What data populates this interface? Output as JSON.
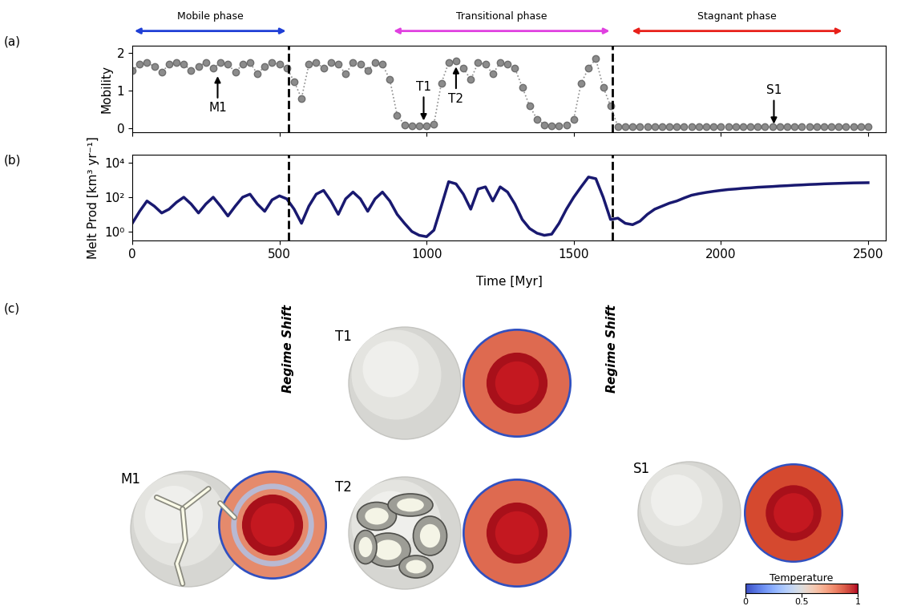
{
  "chart_data": [
    {
      "type": "scatter",
      "title": "(a)",
      "ylabel": "Mobility",
      "x": [
        0,
        25,
        50,
        75,
        100,
        125,
        150,
        175,
        200,
        225,
        250,
        275,
        300,
        325,
        350,
        375,
        400,
        425,
        450,
        475,
        500,
        525,
        550,
        575,
        600,
        625,
        650,
        675,
        700,
        725,
        750,
        775,
        800,
        825,
        850,
        875,
        900,
        925,
        950,
        975,
        1000,
        1025,
        1050,
        1075,
        1100,
        1125,
        1150,
        1175,
        1200,
        1225,
        1250,
        1275,
        1300,
        1325,
        1350,
        1375,
        1400,
        1425,
        1450,
        1475,
        1500,
        1525,
        1550,
        1575,
        1600,
        1625,
        1650,
        1675,
        1700,
        1725,
        1750,
        1775,
        1800,
        1825,
        1850,
        1875,
        1900,
        1925,
        1950,
        1975,
        2000,
        2025,
        2050,
        2075,
        2100,
        2125,
        2150,
        2175,
        2200,
        2225,
        2250,
        2275,
        2300,
        2325,
        2350,
        2375,
        2400,
        2425,
        2450,
        2475,
        2500
      ],
      "values": [
        1.55,
        1.7,
        1.75,
        1.65,
        1.5,
        1.7,
        1.75,
        1.7,
        1.55,
        1.65,
        1.75,
        1.6,
        1.75,
        1.7,
        1.5,
        1.7,
        1.75,
        1.45,
        1.65,
        1.75,
        1.7,
        1.6,
        1.25,
        0.8,
        1.7,
        1.75,
        1.6,
        1.75,
        1.7,
        1.45,
        1.75,
        1.7,
        1.55,
        1.75,
        1.7,
        1.3,
        0.35,
        0.1,
        0.08,
        0.07,
        0.08,
        0.12,
        1.2,
        1.75,
        1.8,
        1.6,
        1.3,
        1.75,
        1.7,
        1.45,
        1.75,
        1.7,
        1.6,
        1.1,
        0.6,
        0.25,
        0.1,
        0.08,
        0.08,
        0.1,
        0.25,
        1.2,
        1.6,
        1.85,
        1.1,
        0.6,
        0.05,
        0.04,
        0.04,
        0.04,
        0.04,
        0.04,
        0.04,
        0.04,
        0.04,
        0.04,
        0.04,
        0.04,
        0.04,
        0.04,
        0.04,
        0.04,
        0.04,
        0.04,
        0.04,
        0.04,
        0.04,
        0.04,
        0.04,
        0.04,
        0.04,
        0.04,
        0.04,
        0.04,
        0.04,
        0.04,
        0.04,
        0.04,
        0.04,
        0.04,
        0.04
      ],
      "color": "#8c8c8c",
      "marker": "circle",
      "line_style": "dotted",
      "xlim": [
        0,
        2560
      ],
      "xticks": [
        0,
        500,
        1000,
        1500,
        2000,
        2500
      ],
      "ylim": [
        -0.1,
        2.2
      ],
      "yticks": [
        0,
        1,
        2
      ],
      "tick_labels": "y",
      "grid": false,
      "annotations": [
        {
          "text": "M1",
          "x": 290,
          "y": 1.45
        },
        {
          "text": "T1",
          "x": 990,
          "y": 0.15
        },
        {
          "text": "T2",
          "x": 1100,
          "y": 1.7
        },
        {
          "text": "S1",
          "x": 2180,
          "y": 0.06
        }
      ],
      "phases": [
        {
          "label": "Mobile phase",
          "start": 0,
          "end": 530,
          "color": "#1f3fd6"
        },
        {
          "label": "Transitional phase",
          "start": 880,
          "end": 1630,
          "color": "#e040e0"
        },
        {
          "label": "Stagnant phase",
          "start": 1690,
          "end": 2420,
          "color": "#e8201a"
        }
      ],
      "vlines": {
        "x": [
          530,
          1630
        ]
      }
    },
    {
      "type": "line",
      "title": "(b)",
      "ylabel": "Melt Prod [km³ yr⁻¹]",
      "xlabel": "Time [Myr]",
      "x": [
        0,
        25,
        50,
        75,
        100,
        125,
        150,
        175,
        200,
        225,
        250,
        275,
        300,
        325,
        350,
        375,
        400,
        425,
        450,
        475,
        500,
        525,
        550,
        575,
        600,
        625,
        650,
        675,
        700,
        725,
        750,
        775,
        800,
        825,
        850,
        875,
        900,
        925,
        950,
        975,
        1000,
        1025,
        1050,
        1075,
        1100,
        1125,
        1150,
        1175,
        1200,
        1225,
        1250,
        1275,
        1300,
        1325,
        1350,
        1375,
        1400,
        1425,
        1450,
        1475,
        1500,
        1525,
        1550,
        1575,
        1600,
        1625,
        1650,
        1675,
        1700,
        1725,
        1750,
        1775,
        1800,
        1825,
        1850,
        1875,
        1900,
        1925,
        1950,
        1975,
        2000,
        2025,
        2050,
        2075,
        2100,
        2125,
        2150,
        2175,
        2200,
        2225,
        2250,
        2275,
        2300,
        2325,
        2350,
        2375,
        2400,
        2425,
        2450,
        2475,
        2500
      ],
      "values": [
        3,
        15,
        60,
        30,
        12,
        20,
        50,
        100,
        40,
        12,
        40,
        100,
        30,
        8,
        30,
        100,
        150,
        40,
        15,
        70,
        120,
        80,
        20,
        3,
        30,
        150,
        250,
        60,
        10,
        80,
        200,
        80,
        15,
        80,
        200,
        60,
        10,
        3,
        1,
        0.6,
        0.5,
        1.2,
        30,
        800,
        600,
        150,
        20,
        300,
        400,
        60,
        400,
        200,
        40,
        5,
        1.5,
        0.8,
        0.6,
        0.7,
        3,
        20,
        100,
        400,
        1500,
        1200,
        100,
        5,
        6,
        3,
        2.5,
        4,
        10,
        20,
        30,
        45,
        60,
        90,
        130,
        160,
        190,
        220,
        250,
        280,
        300,
        330,
        350,
        380,
        400,
        420,
        450,
        470,
        500,
        520,
        550,
        570,
        600,
        620,
        640,
        660,
        680,
        690,
        700
      ],
      "color": "#191970",
      "line_style": "solid",
      "log": "y",
      "xlim": [
        0,
        2560
      ],
      "xticks": [
        0,
        500,
        1000,
        1500,
        2000,
        2500
      ],
      "ylim": [
        0.3,
        30000
      ],
      "yticks": [
        {
          "value": 1,
          "label": "10⁰"
        },
        {
          "value": 100,
          "label": "10²"
        },
        {
          "value": 10000,
          "label": "10⁴"
        }
      ],
      "grid": false,
      "vlines": {
        "label": "Regime Shift",
        "x": [
          530,
          1630
        ]
      }
    }
  ],
  "panel_c": {
    "title": "(c)",
    "snapshots": [
      {
        "label": "M1"
      },
      {
        "label": "T1"
      },
      {
        "label": "T2"
      },
      {
        "label": "S1"
      }
    ],
    "colorbar": {
      "label": "Temperature",
      "range": [
        0,
        1
      ],
      "ticks": [
        0,
        0.5,
        1
      ]
    }
  }
}
